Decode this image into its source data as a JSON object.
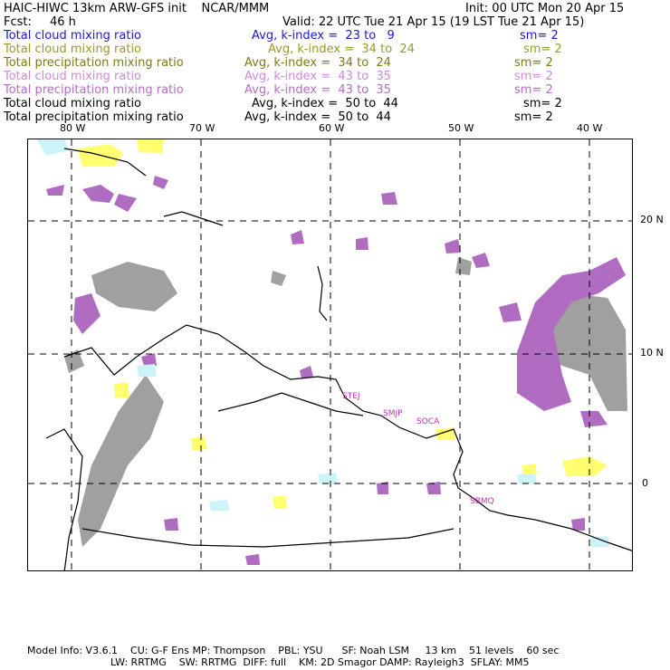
{
  "header": {
    "title": "HAIC-HIWC 13km ARW-GFS init    NCAR/MMM",
    "init": "Init: 00 UTC Mon 20 Apr 15",
    "fcst_label": "Fcst:",
    "fcst_value": "46 h",
    "valid": "Valid: 22 UTC Tue 21 Apr 15 (19 LST Tue 21 Apr 15)"
  },
  "legend": [
    {
      "name": "Total cloud mixing ratio",
      "avg": "Avg, k-index =  23 to   9",
      "sm": "sm= 2",
      "color": "#1a1ad0"
    },
    {
      "name": "Total cloud mixing ratio",
      "avg": "Avg, k-index =  34 to  24",
      "sm": "sm= 2",
      "color": "#9a9a2a"
    },
    {
      "name": "Total precipitation mixing ratio",
      "avg": "Avg, k-index =  34 to  24",
      "sm": "sm= 2",
      "color": "#7a7a1a"
    },
    {
      "name": "Total cloud mixing ratio",
      "avg": "Avg, k-index =  43 to  35",
      "sm": "sm= 2",
      "color": "#d08ad8"
    },
    {
      "name": "Total precipitation mixing ratio",
      "avg": "Avg, k-index =  43 to  35",
      "sm": "sm= 2",
      "color": "#b070c0"
    },
    {
      "name": "Total cloud mixing ratio",
      "avg": "Avg, k-index =  50 to  44",
      "sm": "sm= 2",
      "color": "#000000"
    },
    {
      "name": "Total precipitation mixing ratio",
      "avg": "Avg, k-index =  50 to  44",
      "sm": "sm= 2",
      "color": "#000000"
    }
  ],
  "lon_labels": [
    "80 W",
    "70 W",
    "60 W",
    "50 W",
    "40 W"
  ],
  "lat_labels": [
    "20 N",
    "10 N",
    "0"
  ],
  "stations": [
    "STEJ",
    "SMJP",
    "SOCA",
    "SBMQ"
  ],
  "footer": {
    "line1": "Model Info: V3.6.1    CU: G-F Ens MP: Thompson    PBL: YSU      SF: Noah LSM     13 km    51 levels    60 sec",
    "line2": "LW: RRTMG    SW: RRTMG  DIFF: full    KM: 2D Smagor DAMP: Rayleigh3  SFLAY: MM5"
  },
  "colors": {
    "cloud_purple": "#b06cc0",
    "precip_gray": "#9a9a9a",
    "cyan": "#ccf4f8",
    "yellow": "#ffff70"
  }
}
